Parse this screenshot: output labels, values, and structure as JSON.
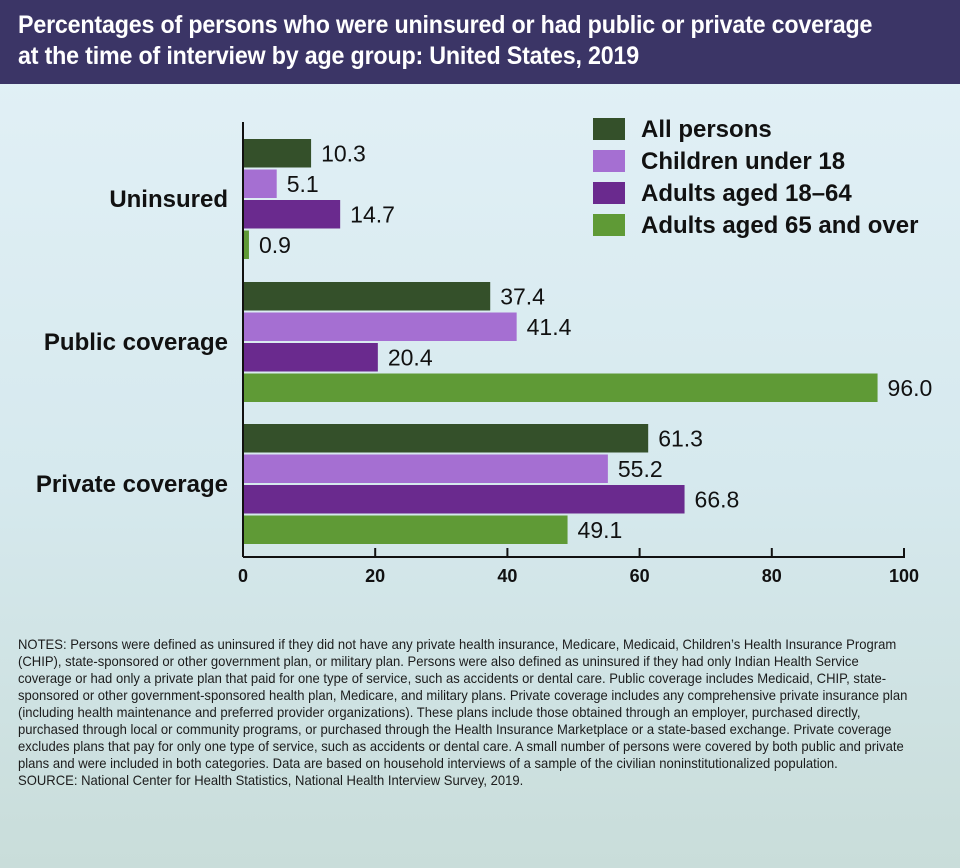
{
  "header": {
    "title_line1": "Percentages of persons who were uninsured or had public or private coverage",
    "title_line2": "at the time of interview by age group: United States, 2019"
  },
  "chart_data": {
    "type": "bar",
    "orientation": "horizontal",
    "categories": [
      "Uninsured",
      "Public coverage",
      "Private coverage"
    ],
    "series": [
      {
        "name": "All persons",
        "color": "#34502a",
        "values": [
          10.3,
          37.4,
          61.3
        ]
      },
      {
        "name": "Children under 18",
        "color": "#a56fd2",
        "values": [
          5.1,
          41.4,
          55.2
        ]
      },
      {
        "name": "Adults aged 18–64",
        "color": "#6a2a8e",
        "values": [
          14.7,
          20.4,
          66.8
        ]
      },
      {
        "name": "Adults aged 65 and over",
        "color": "#5f9a36",
        "values": [
          0.9,
          96.0,
          49.1
        ]
      }
    ],
    "value_labels": [
      [
        "10.3",
        "37.4",
        "61.3"
      ],
      [
        "5.1",
        "41.4",
        "55.2"
      ],
      [
        "14.7",
        "20.4",
        "66.8"
      ],
      [
        "0.9",
        "96.0",
        "49.1"
      ]
    ],
    "xlim": [
      0,
      100
    ],
    "xticks": [
      0,
      20,
      40,
      60,
      80,
      100
    ],
    "xtick_labels": [
      "0",
      "20",
      "40",
      "60",
      "80",
      "100"
    ],
    "xlabel": "",
    "ylabel": "",
    "grid": false,
    "legend_position": "top-right"
  },
  "notes": {
    "text": "NOTES: Persons were defined as uninsured if they did not have any private health insurance, Medicare, Medicaid, Children’s Health Insurance Program (CHIP), state-sponsored or other government plan, or military plan. Persons were also defined as uninsured if they had only Indian Health Service coverage or had only a private plan that paid for one type of service, such as accidents or dental care. Public coverage includes Medicaid, CHIP, state-sponsored or other government-sponsored health plan, Medicare, and military plans. Private coverage includes any comprehensive private insurance plan (including health maintenance and preferred provider organizations). These plans include those obtained through an employer, purchased directly, purchased through local or community programs, or purchased through the Health Insurance Marketplace or a state-based exchange. Private coverage excludes plans that pay for only one type of service, such as accidents or dental care. A small number of persons were covered by both public and private plans and were included in both categories. Data are based on household interviews of a sample of the civilian noninstitutionalized population.",
    "source": "SOURCE: National Center for Health Statistics, National Health Interview Survey, 2019."
  }
}
